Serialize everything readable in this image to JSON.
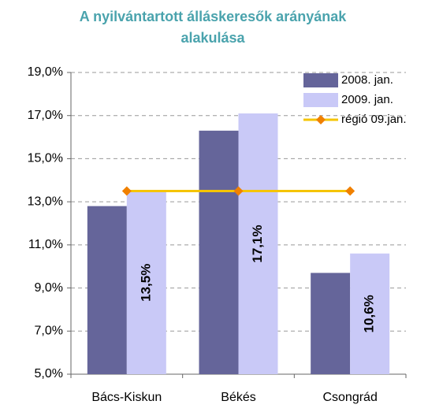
{
  "chart_data": {
    "type": "bar",
    "title": "A nyilvántartott álláskeresők arányának alakulása",
    "categories": [
      "Bács-Kiskun",
      "Békés",
      "Csongrád"
    ],
    "series": [
      {
        "name": "2008. jan.",
        "color": "#65659a",
        "values": [
          12.8,
          16.3,
          9.7
        ]
      },
      {
        "name": "2009. jan.",
        "color": "#c9c9f7",
        "values": [
          13.5,
          17.1,
          10.6
        ],
        "value_labels": [
          "13,5%",
          "17,1%",
          "10,6%"
        ]
      },
      {
        "name": "régió 09.jan.",
        "type": "line",
        "color": "#f5c400",
        "marker_color": "#f08000",
        "values": [
          13.5,
          13.5,
          13.5
        ]
      }
    ],
    "ylim": [
      5,
      19
    ],
    "yticks": [
      {
        "value": 5,
        "label": "5,0%"
      },
      {
        "value": 7,
        "label": "7,0%"
      },
      {
        "value": 9,
        "label": "9,0%"
      },
      {
        "value": 11,
        "label": "11,0%"
      },
      {
        "value": 13,
        "label": "13,0%"
      },
      {
        "value": 15,
        "label": "15,0%"
      },
      {
        "value": 17,
        "label": "17,0%"
      },
      {
        "value": 19,
        "label": "19,0%"
      }
    ],
    "grid": true,
    "legend": "top-right"
  }
}
